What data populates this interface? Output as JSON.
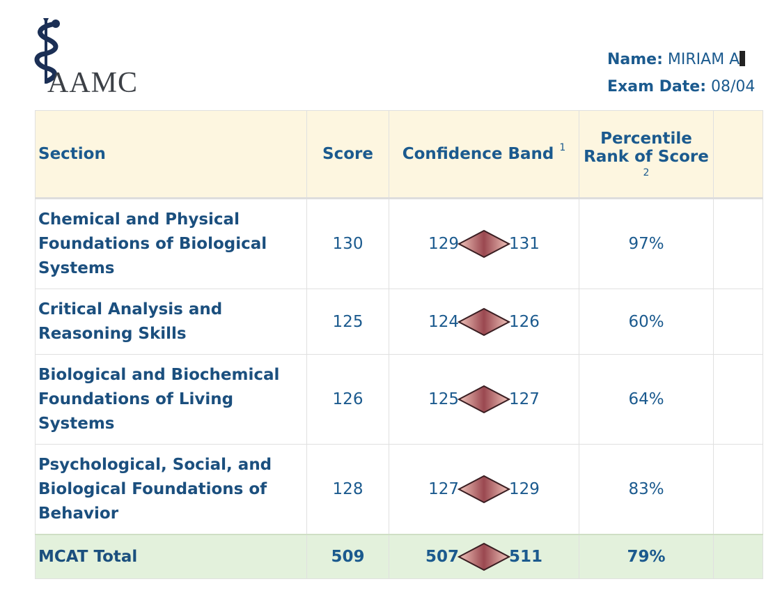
{
  "header": {
    "logo_text": "AAMC",
    "name_label": "Name:",
    "name_value": "MIRIAM A",
    "exam_date_label": "Exam Date:",
    "exam_date_value": "08/04"
  },
  "table": {
    "columns": {
      "section": "Section",
      "score": "Score",
      "band": "Confidence Band",
      "band_note": "1",
      "percentile_line1": "Percentile",
      "percentile_line2": "Rank of Score",
      "percentile_note": "2"
    },
    "rows": [
      {
        "section_lines": [
          "Chemical and Physical",
          "Foundations of Biological",
          "Systems"
        ],
        "score": "130",
        "band_low": "129",
        "band_high": "131",
        "percentile": "97%"
      },
      {
        "section_lines": [
          "Critical Analysis and",
          "Reasoning Skills"
        ],
        "score": "125",
        "band_low": "124",
        "band_high": "126",
        "percentile": "60%"
      },
      {
        "section_lines": [
          "Biological and Biochemical",
          "Foundations of Living",
          "Systems"
        ],
        "score": "126",
        "band_low": "125",
        "band_high": "127",
        "percentile": "64%"
      },
      {
        "section_lines": [
          "Psychological, Social, and",
          "Biological Foundations of",
          "Behavior"
        ],
        "score": "128",
        "band_low": "127",
        "band_high": "129",
        "percentile": "83%"
      }
    ],
    "total": {
      "section": "MCAT Total",
      "score": "509",
      "band_low": "507",
      "band_high": "511",
      "percentile": "79%"
    }
  },
  "colors": {
    "header_bg": "#fdf6e0",
    "total_bg": "#e3f1dc",
    "text_blue": "#1b5a8e",
    "diamond": "#b56a6a"
  }
}
